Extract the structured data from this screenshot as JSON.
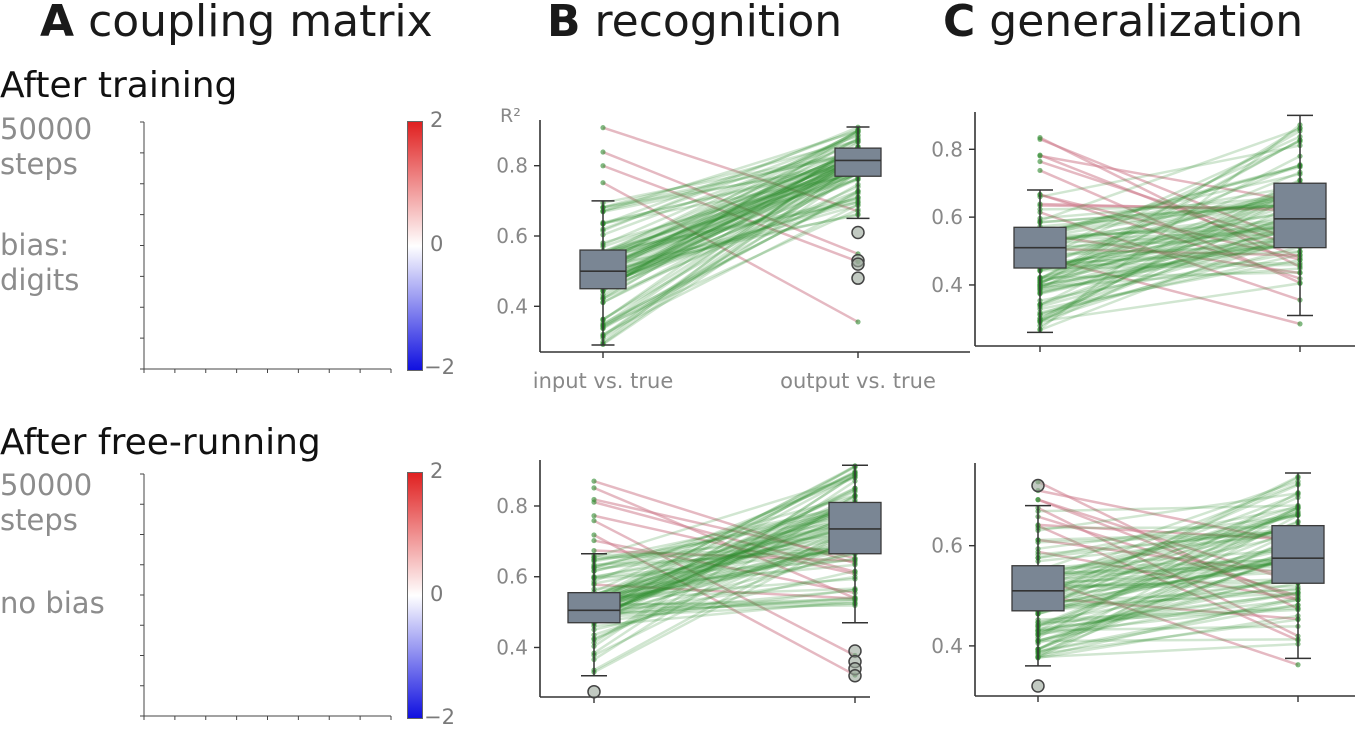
{
  "panel_titles": [
    {
      "letter": "A",
      "text": "coupling matrix"
    },
    {
      "letter": "B",
      "text": "recognition"
    },
    {
      "letter": "C",
      "text": "generalization"
    }
  ],
  "rows": [
    {
      "title": "After training",
      "steps_line1": "50000",
      "steps_line2": "steps",
      "bias_line1": "bias:",
      "bias_line2": "digits"
    },
    {
      "title": "After free-running",
      "steps_line1": "50000",
      "steps_line2": "steps",
      "bias_line1": "no bias",
      "bias_line2": ""
    }
  ],
  "colorbar": {
    "max_label": "2",
    "mid_label": "0",
    "min_label": "−2",
    "colors": {
      "pos": "#e02020",
      "mid": "#ffffff",
      "neg": "#1010e0"
    }
  },
  "colors": {
    "increase": "#2e8b2e",
    "decrease": "#d08090",
    "box": "#7a8694",
    "axis": "#333333",
    "tick_label": "#888888"
  },
  "chart_data": [
    {
      "id": "B1",
      "type": "box",
      "ylabel": "R²",
      "categories": [
        "input vs. true",
        "output vs. true"
      ],
      "ylim": [
        0.27,
        0.93
      ],
      "yticks": [
        0.4,
        0.6,
        0.8
      ],
      "ytick_labels": [
        "0.4",
        "0.6",
        "0.8"
      ],
      "boxes": [
        {
          "q1": 0.45,
          "median": 0.5,
          "q3": 0.56,
          "whisker_low": 0.29,
          "whisker_high": 0.7,
          "outliers": []
        },
        {
          "q1": 0.77,
          "median": 0.815,
          "q3": 0.85,
          "whisker_low": 0.65,
          "whisker_high": 0.91,
          "outliers": [
            0.61,
            0.53,
            0.52,
            0.48
          ]
        }
      ],
      "n_pairs": 100,
      "n_decreasing": 4
    },
    {
      "id": "C1",
      "type": "box",
      "ylabel": "",
      "categories": [
        "",
        ""
      ],
      "ylim": [
        0.22,
        0.91
      ],
      "yticks": [
        0.4,
        0.6,
        0.8
      ],
      "ytick_labels": [
        "0.4",
        "0.6",
        "0.8"
      ],
      "boxes": [
        {
          "q1": 0.45,
          "median": 0.51,
          "q3": 0.57,
          "whisker_low": 0.26,
          "whisker_high": 0.68,
          "outliers": []
        },
        {
          "q1": 0.51,
          "median": 0.595,
          "q3": 0.7,
          "whisker_low": 0.31,
          "whisker_high": 0.9,
          "outliers": []
        }
      ],
      "n_pairs": 100,
      "n_decreasing": 14
    },
    {
      "id": "B2",
      "type": "box",
      "ylabel": "",
      "categories": [
        "",
        ""
      ],
      "ylim": [
        0.26,
        0.93
      ],
      "yticks": [
        0.4,
        0.6,
        0.8
      ],
      "ytick_labels": [
        "0.4",
        "0.6",
        "0.8"
      ],
      "boxes": [
        {
          "q1": 0.47,
          "median": 0.505,
          "q3": 0.555,
          "whisker_low": 0.32,
          "whisker_high": 0.665,
          "outliers": [
            0.275
          ]
        },
        {
          "q1": 0.665,
          "median": 0.735,
          "q3": 0.81,
          "whisker_low": 0.47,
          "whisker_high": 0.915,
          "outliers": [
            0.39,
            0.36,
            0.34,
            0.32
          ]
        }
      ],
      "n_pairs": 100,
      "n_decreasing": 10
    },
    {
      "id": "C2",
      "type": "box",
      "ylabel": "",
      "categories": [
        "",
        ""
      ],
      "ylim": [
        0.3,
        0.765
      ],
      "yticks": [
        0.4,
        0.6
      ],
      "ytick_labels": [
        "0.4",
        "0.6"
      ],
      "boxes": [
        {
          "q1": 0.47,
          "median": 0.51,
          "q3": 0.56,
          "whisker_low": 0.36,
          "whisker_high": 0.68,
          "outliers": [
            0.72,
            0.32
          ]
        },
        {
          "q1": 0.525,
          "median": 0.575,
          "q3": 0.64,
          "whisker_low": 0.375,
          "whisker_high": 0.745,
          "outliers": []
        }
      ],
      "n_pairs": 100,
      "n_decreasing": 12
    }
  ]
}
